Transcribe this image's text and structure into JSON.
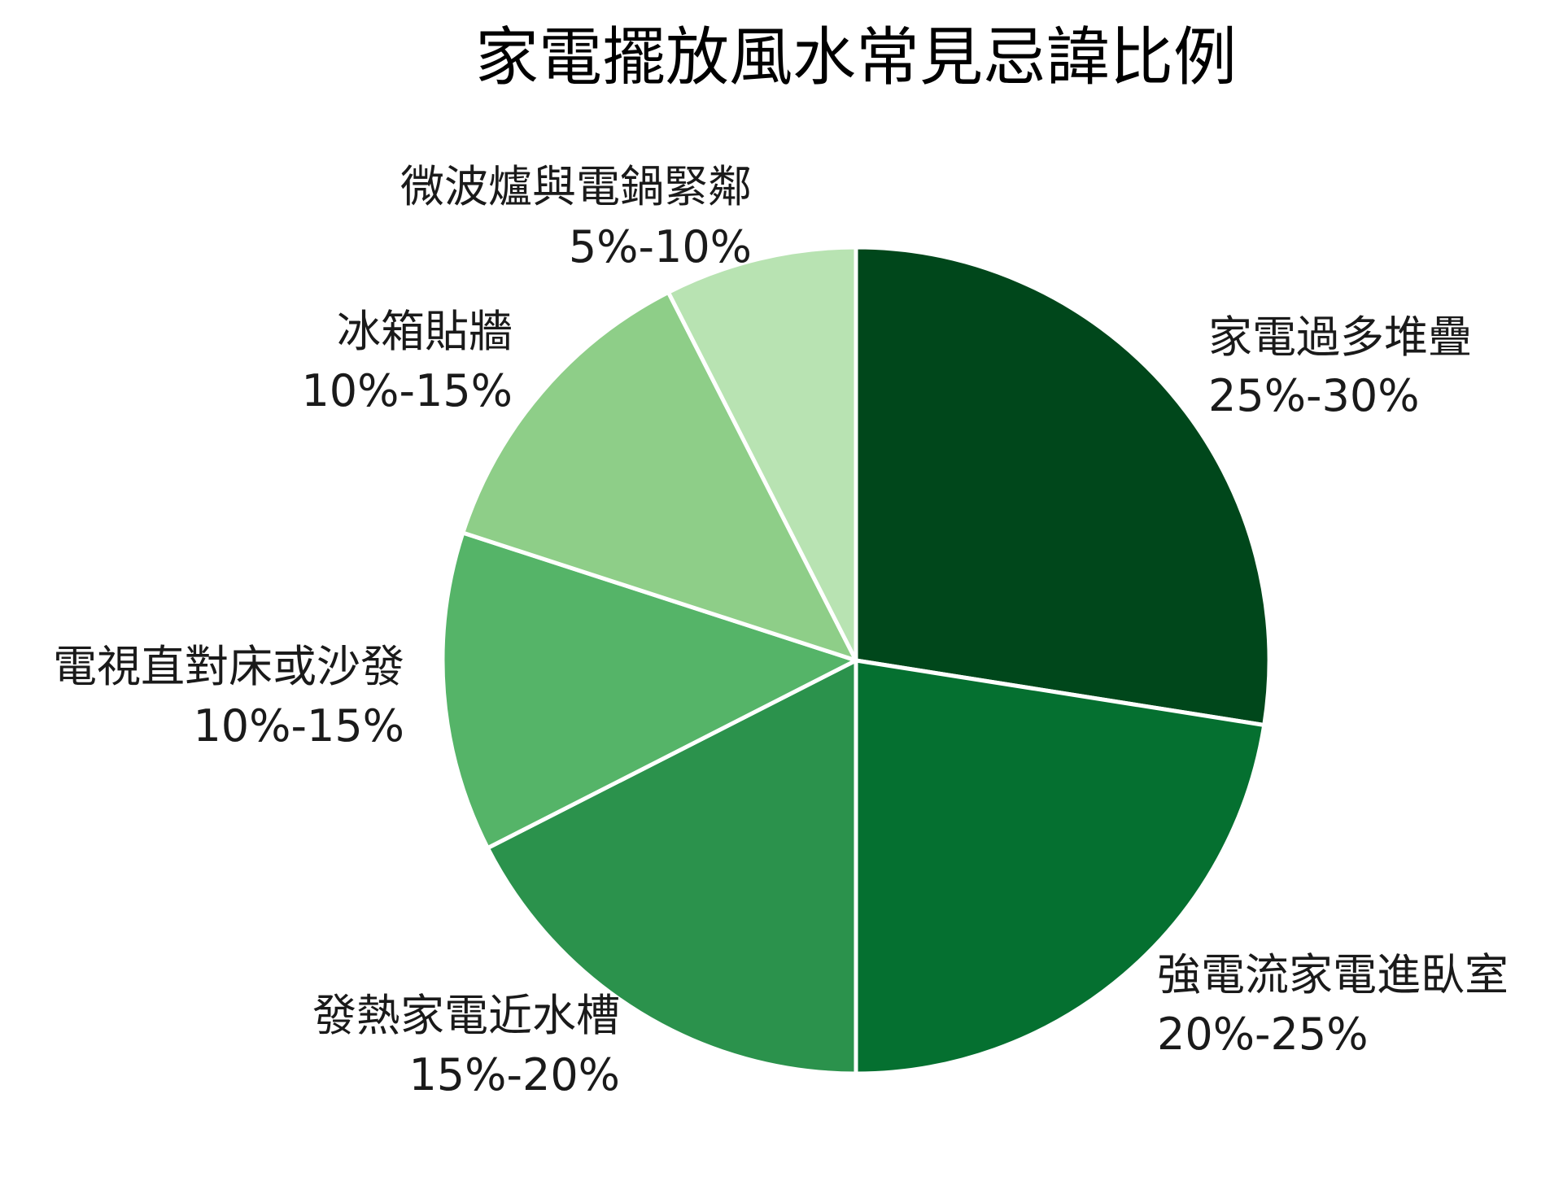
{
  "chart_data": {
    "type": "pie",
    "title": "家電擺放風水常見忌諱比例",
    "start_angle": "top",
    "direction": "clockwise",
    "slice_border_color": "#ffffff",
    "slices": [
      {
        "label": "家電過多堆疊",
        "range_label": "25%-30%",
        "value": 27.5,
        "color": "#00471b"
      },
      {
        "label": "強電流家電進臥室",
        "range_label": "20%-25%",
        "value": 22.5,
        "color": "#057030"
      },
      {
        "label": "發熱家電近水槽",
        "range_label": "15%-20%",
        "value": 17.5,
        "color": "#2b924c"
      },
      {
        "label": "電視直對床或沙發",
        "range_label": "10%-15%",
        "value": 12.5,
        "color": "#55b468"
      },
      {
        "label": "冰箱貼牆",
        "range_label": "10%-15%",
        "value": 12.5,
        "color": "#8ece88"
      },
      {
        "label": "微波爐與電鍋緊鄰",
        "range_label": "5%-10%",
        "value": 7.5,
        "color": "#b8e3b2"
      }
    ]
  }
}
